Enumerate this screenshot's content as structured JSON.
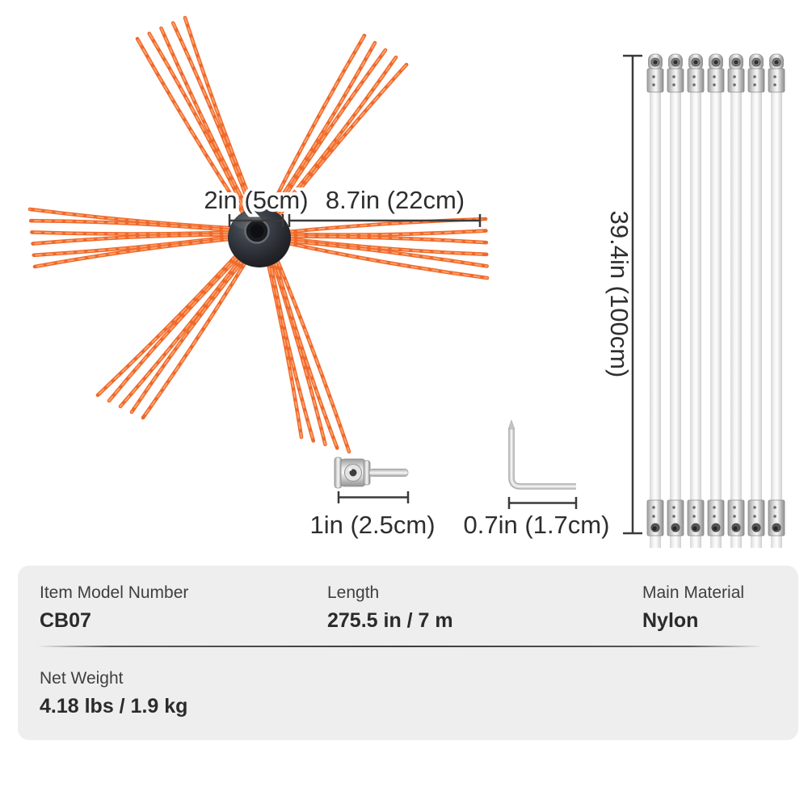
{
  "diagram": {
    "dimensions": {
      "hub_diameter": "2in (5cm)",
      "bristle_length": "8.7in (22cm)",
      "rod_length": "39.4in (100cm)",
      "adapter_length": "1in (2.5cm)",
      "hex_key_length": "0.7in (1.7cm)"
    },
    "components": {
      "brush_head": "nylon-chimney-brush-head",
      "rods": "flexible-extension-rods",
      "rod_count": 7,
      "adapter": "drill-adapter-bit",
      "hex_key": "hex-wrench"
    },
    "colors": {
      "bristle_orange": "#ee692b",
      "bristle_highlight": "#ffa26b",
      "hub_dark": "#23252b",
      "metal_gray": "#c9c9c9",
      "dimension_ink": "#3a3a3a",
      "panel_background": "#eeeeee"
    }
  },
  "spec_panel": {
    "rows": [
      [
        {
          "label": "Item Model Number",
          "value": "CB07"
        },
        {
          "label": "Length",
          "value": "275.5 in / 7 m"
        },
        {
          "label": "Main Material",
          "value": "Nylon"
        }
      ],
      [
        {
          "label": "Net Weight",
          "value": "4.18 lbs / 1.9 kg"
        }
      ]
    ]
  }
}
